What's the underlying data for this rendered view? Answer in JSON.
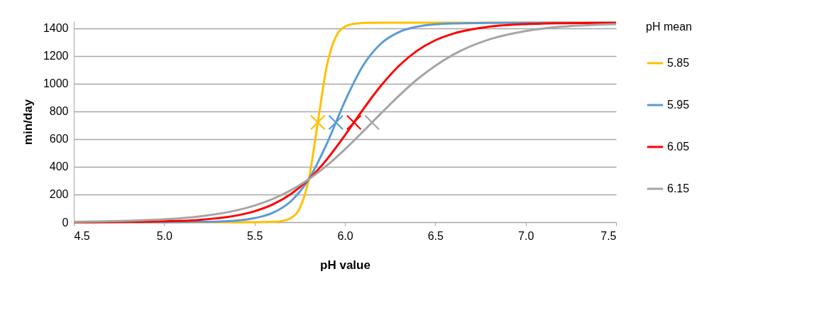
{
  "chart_data": {
    "type": "line",
    "xlabel": "pH value",
    "ylabel": "min/day",
    "legend_title": "pH mean",
    "xlim": [
      4.5,
      7.5
    ],
    "ylim": [
      0,
      1450
    ],
    "xticks": [
      4.5,
      {
        "value": 5,
        "label": "5.0"
      },
      5.5,
      {
        "value": 6,
        "label": "6.0"
      },
      6.5,
      {
        "value": 7,
        "label": "7.0"
      },
      7.5
    ],
    "yticks": [
      0,
      200,
      400,
      600,
      800,
      1000,
      1200,
      1400
    ],
    "grid": "y",
    "legend": "right",
    "line_style": "solid",
    "marker": "none",
    "series": [
      {
        "name": "5.85",
        "color": "#ffc000",
        "x": [
          4.5,
          5.0,
          5.5,
          5.6,
          5.65,
          5.7,
          5.75,
          5.8,
          5.85,
          5.9,
          5.95,
          6.0,
          6.05,
          6.1,
          6.2,
          6.5,
          7.0,
          7.5
        ],
        "values": [
          0,
          0,
          0,
          2,
          8,
          29,
          101,
          310,
          720,
          1130,
          1339,
          1411,
          1432,
          1438,
          1440,
          1440,
          1440,
          1440
        ]
      },
      {
        "name": "5.95",
        "color": "#5b9bd5",
        "x": [
          4.5,
          5.0,
          5.2,
          5.4,
          5.5,
          5.6,
          5.7,
          5.8,
          5.9,
          6.0,
          6.1,
          6.2,
          6.3,
          6.4,
          6.5,
          6.6,
          6.8,
          7.0,
          7.5
        ],
        "values": [
          0,
          0,
          2,
          12,
          29,
          67,
          150,
          310,
          567,
          873,
          1130,
          1290,
          1373,
          1411,
          1428,
          1435,
          1439,
          1440,
          1440
        ]
      },
      {
        "name": "6.05",
        "color": "#ff0000",
        "x": [
          4.5,
          4.8,
          5.0,
          5.2,
          5.4,
          5.5,
          5.6,
          5.7,
          5.8,
          5.9,
          6.0,
          6.1,
          6.2,
          6.3,
          6.4,
          6.5,
          6.6,
          6.8,
          7.0,
          7.2,
          7.5
        ],
        "values": [
          0,
          2,
          6,
          17,
          48,
          79,
          127,
          202,
          310,
          453,
          627,
          813,
          986,
          1130,
          1238,
          1313,
          1361,
          1411,
          1430,
          1436,
          1439
        ]
      },
      {
        "name": "6.15",
        "color": "#a5a5a5",
        "x": [
          4.5,
          4.8,
          5.0,
          5.2,
          5.4,
          5.5,
          5.6,
          5.7,
          5.8,
          5.9,
          6.0,
          6.1,
          6.2,
          6.3,
          6.4,
          6.5,
          6.6,
          6.8,
          7.0,
          7.2,
          7.5
        ],
        "values": [
          3,
          10,
          20,
          42,
          85,
          120,
          167,
          230,
          310,
          409,
          526,
          654,
          786,
          914,
          1031,
          1129,
          1210,
          1320,
          1380,
          1411,
          1430
        ]
      },
      {
        "type": "scatter",
        "marker": "cross",
        "color": "#ffc000",
        "x": [
          5.85
        ],
        "values": [
          720
        ]
      },
      {
        "type": "scatter",
        "marker": "cross",
        "color": "#5b9bd5",
        "x": [
          5.95
        ],
        "values": [
          720
        ]
      },
      {
        "type": "scatter",
        "marker": "cross",
        "color": "#ff0000",
        "x": [
          6.05
        ],
        "values": [
          720
        ]
      },
      {
        "type": "scatter",
        "marker": "cross",
        "color": "#a5a5a5",
        "x": [
          6.15
        ],
        "values": [
          720
        ]
      }
    ]
  }
}
